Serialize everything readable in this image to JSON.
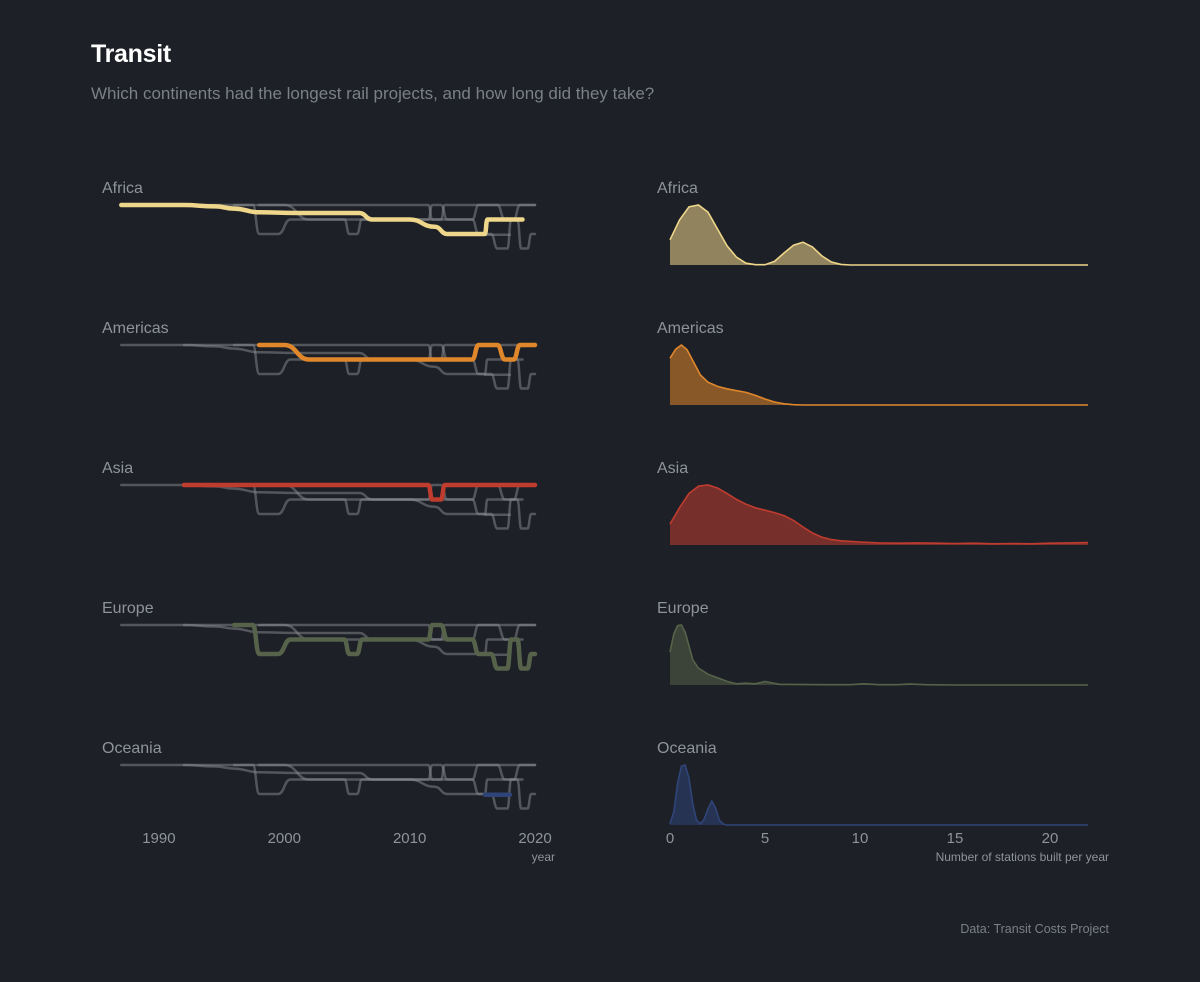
{
  "title": "Transit",
  "subtitle": "Which continents had the longest rail projects, and how long did they take?",
  "caption": "Data: Transit Costs Project",
  "colors": {
    "background": "#1d2026",
    "Africa": "#eed68a",
    "Americas": "#e0872c",
    "Asia": "#c03c2f",
    "Europe": "#56634a",
    "Oceania": "#2f4478",
    "context_line": "#8a8d92"
  },
  "chart_data": [
    {
      "type": "line",
      "description_axis": "year",
      "xlabel": "year",
      "xlim": [
        1986.5,
        2020
      ],
      "xticks": [
        1990,
        2000,
        2010,
        2020
      ],
      "panels": [
        "Africa",
        "Americas",
        "Asia",
        "Europe",
        "Oceania"
      ],
      "series": [
        {
          "name": "Africa",
          "points": [
            [
              1987,
              0
            ],
            [
              1992,
              0
            ],
            [
              1994.5,
              0.1
            ],
            [
              1996,
              0.25
            ],
            [
              1998,
              0.5
            ],
            [
              2001,
              0.55
            ],
            [
              2004,
              0.55
            ],
            [
              2006,
              0.55
            ],
            [
              2007,
              1
            ],
            [
              2010,
              1
            ],
            [
              2012,
              1.5
            ],
            [
              2013,
              2
            ],
            [
              2016,
              2
            ],
            [
              2016.2,
              1
            ],
            [
              2019,
              1
            ]
          ]
        },
        {
          "name": "Americas",
          "points": [
            [
              1998,
              0
            ],
            [
              2000,
              0
            ],
            [
              2002,
              1
            ],
            [
              2014,
              1
            ],
            [
              2015,
              1
            ],
            [
              2015.5,
              0
            ],
            [
              2017,
              0
            ],
            [
              2017.6,
              1
            ],
            [
              2018.3,
              1
            ],
            [
              2018.8,
              0
            ],
            [
              2020,
              0
            ]
          ]
        },
        {
          "name": "Asia",
          "points": [
            [
              1992,
              0
            ],
            [
              2011.5,
              0
            ],
            [
              2011.8,
              1
            ],
            [
              2012.5,
              1
            ],
            [
              2012.8,
              0
            ],
            [
              2020,
              0
            ]
          ]
        },
        {
          "name": "Europe",
          "points": [
            [
              1996,
              0
            ],
            [
              1997.5,
              0
            ],
            [
              1998,
              2
            ],
            [
              1999.5,
              2
            ],
            [
              2000.5,
              1
            ],
            [
              2004.8,
              1
            ],
            [
              2005.2,
              2
            ],
            [
              2005.8,
              2
            ],
            [
              2006.2,
              1
            ],
            [
              2011.5,
              1
            ],
            [
              2011.8,
              0
            ],
            [
              2012.5,
              0
            ],
            [
              2013,
              1
            ],
            [
              2015,
              1
            ],
            [
              2015.5,
              2
            ],
            [
              2016.5,
              2
            ],
            [
              2017,
              3
            ],
            [
              2017.8,
              3
            ],
            [
              2018.1,
              1
            ],
            [
              2018.6,
              1
            ],
            [
              2018.9,
              3
            ],
            [
              2019.4,
              3
            ],
            [
              2019.7,
              2
            ],
            [
              2020,
              2
            ]
          ]
        },
        {
          "name": "Oceania",
          "points": [
            [
              2016,
              2.05
            ],
            [
              2018,
              2.05
            ]
          ]
        }
      ]
    },
    {
      "type": "area",
      "description_axis": "density",
      "xlabel": "Number of stations built per year",
      "xlim": [
        0,
        22
      ],
      "xticks": [
        0,
        5,
        10,
        15,
        20
      ],
      "series": [
        {
          "name": "Africa",
          "x": [
            0,
            0.5,
            1,
            1.5,
            2,
            2.5,
            3,
            3.5,
            4,
            4.5,
            5,
            5.5,
            6,
            6.5,
            7,
            7.5,
            8,
            8.5,
            9,
            9.5,
            10,
            11,
            12,
            14,
            16,
            18,
            20,
            22
          ],
          "y": [
            0.42,
            0.75,
            0.97,
            1,
            0.88,
            0.6,
            0.32,
            0.13,
            0.03,
            0.005,
            0.005,
            0.06,
            0.2,
            0.33,
            0.38,
            0.3,
            0.15,
            0.05,
            0.01,
            0,
            0,
            0,
            0,
            0,
            0,
            0,
            0,
            0
          ]
        },
        {
          "name": "Americas",
          "x": [
            0,
            0.3,
            0.6,
            0.9,
            1.2,
            1.6,
            2,
            2.5,
            3,
            3.5,
            4,
            4.5,
            5,
            5.5,
            6,
            6.5,
            7,
            8,
            9,
            10,
            12,
            14,
            16,
            18,
            20,
            22
          ],
          "y": [
            0.78,
            0.93,
            1,
            0.92,
            0.74,
            0.5,
            0.38,
            0.31,
            0.27,
            0.24,
            0.21,
            0.16,
            0.1,
            0.05,
            0.02,
            0.005,
            0,
            0,
            0,
            0,
            0,
            0,
            0,
            0,
            0,
            0
          ]
        },
        {
          "name": "Asia",
          "x": [
            0,
            0.5,
            1,
            1.5,
            2,
            2.5,
            3,
            3.5,
            4,
            4.5,
            5,
            5.5,
            6,
            6.5,
            7,
            7.5,
            8,
            8.5,
            9,
            10,
            11,
            12,
            13,
            14,
            15,
            16,
            17,
            18,
            19,
            20,
            21,
            22
          ],
          "y": [
            0.35,
            0.62,
            0.86,
            0.98,
            1,
            0.95,
            0.86,
            0.76,
            0.68,
            0.62,
            0.58,
            0.54,
            0.49,
            0.41,
            0.3,
            0.2,
            0.13,
            0.09,
            0.07,
            0.05,
            0.035,
            0.03,
            0.035,
            0.03,
            0.025,
            0.03,
            0.02,
            0.025,
            0.02,
            0.03,
            0.035,
            0.04
          ]
        },
        {
          "name": "Europe",
          "x": [
            0,
            0.2,
            0.4,
            0.6,
            0.8,
            1,
            1.2,
            1.5,
            2,
            2.5,
            3,
            3.5,
            4,
            4.5,
            5,
            5.3,
            5.8,
            6.5,
            8,
            9.5,
            10.2,
            11,
            12,
            12.6,
            13.5,
            15,
            18,
            22
          ],
          "y": [
            0.55,
            0.85,
            0.99,
            1,
            0.88,
            0.65,
            0.42,
            0.28,
            0.18,
            0.12,
            0.06,
            0.02,
            0.03,
            0.02,
            0.06,
            0.04,
            0.01,
            0.01,
            0.005,
            0.005,
            0.02,
            0.005,
            0.005,
            0.015,
            0.005,
            0,
            0,
            0
          ]
        },
        {
          "name": "Oceania",
          "x": [
            0,
            0.2,
            0.4,
            0.6,
            0.8,
            1,
            1.2,
            1.4,
            1.6,
            1.8,
            2,
            2.2,
            2.4,
            2.6,
            2.8,
            3,
            3.5,
            4,
            6,
            8,
            10,
            14,
            18,
            22
          ],
          "y": [
            0.02,
            0.22,
            0.7,
            0.98,
            1,
            0.78,
            0.35,
            0.08,
            0.02,
            0.1,
            0.27,
            0.4,
            0.28,
            0.08,
            0.015,
            0,
            0,
            0,
            0,
            0,
            0,
            0,
            0,
            0
          ]
        }
      ]
    }
  ]
}
